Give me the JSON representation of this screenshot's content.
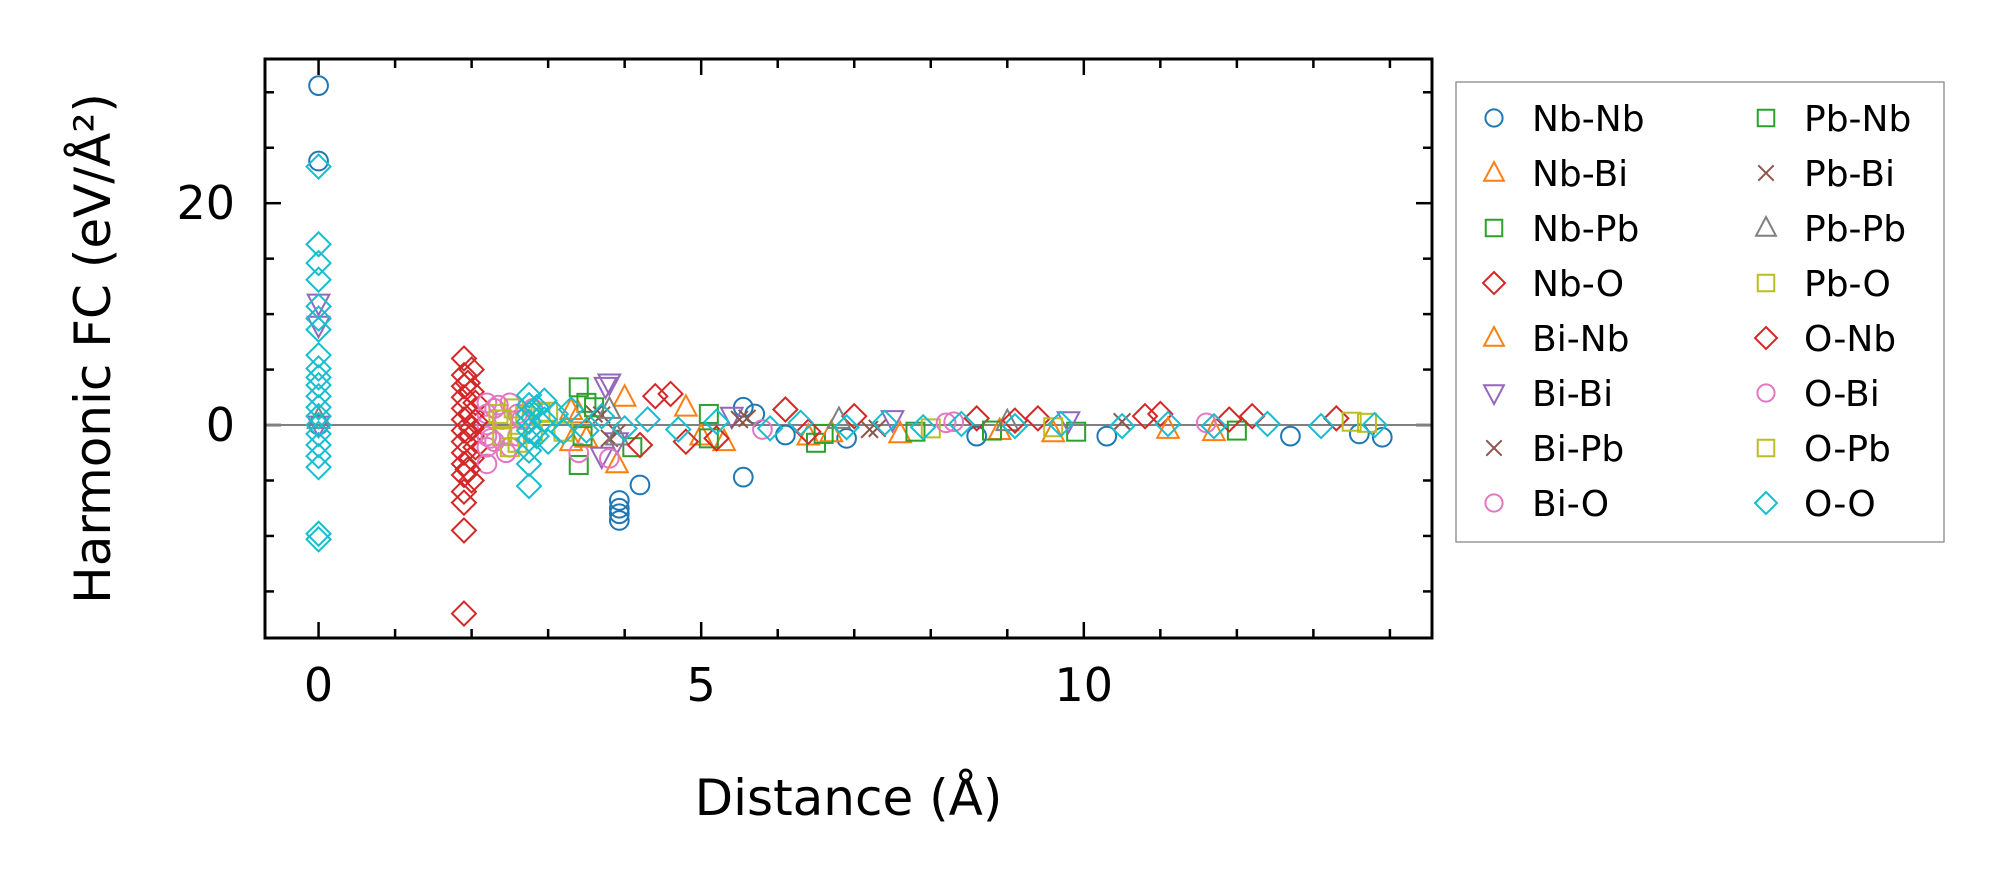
{
  "chart_data": {
    "type": "scatter",
    "xlabel": "Distance (Å)",
    "ylabel": "Harmonic FC (eV/Å²)",
    "xlim": [
      -0.7,
      14.55
    ],
    "ylim": [
      -19.2,
      33
    ],
    "xticks": [
      0,
      5,
      10
    ],
    "yticks": [
      0,
      20
    ],
    "xminor_step": 1,
    "yminor_step": 5,
    "zero_line": true,
    "legend_position": "outside-right",
    "legend_columns": 2,
    "series": [
      {
        "name": "Nb-Nb",
        "marker": "circle",
        "color": "#1f77b4",
        "points": [
          [
            0,
            30.6
          ],
          [
            0,
            23.8
          ],
          [
            0,
            0
          ],
          [
            3.93,
            -6.8
          ],
          [
            3.93,
            -7.5
          ],
          [
            3.93,
            -8
          ],
          [
            3.93,
            -8.6
          ],
          [
            4.2,
            -5.4
          ],
          [
            5.55,
            1.6
          ],
          [
            5.55,
            -4.7
          ],
          [
            5.7,
            1
          ],
          [
            6.1,
            -0.9
          ],
          [
            6.9,
            -1.2
          ],
          [
            8.6,
            -1
          ],
          [
            10.3,
            -1
          ],
          [
            12.7,
            -1
          ],
          [
            13.6,
            -0.8
          ],
          [
            13.9,
            -1.1
          ]
        ]
      },
      {
        "name": "Nb-Bi",
        "marker": "triangle-up",
        "color": "#ff7f0e",
        "points": [
          [
            3.3,
            -1.5
          ],
          [
            3.4,
            1
          ],
          [
            3.9,
            -3.5
          ],
          [
            4,
            2.5
          ],
          [
            5,
            -1
          ],
          [
            5.3,
            -1.5
          ],
          [
            6.4,
            -1
          ],
          [
            7.6,
            -0.8
          ],
          [
            9.6,
            -0.7
          ],
          [
            11.7,
            -0.6
          ]
        ]
      },
      {
        "name": "Nb-Pb",
        "marker": "square",
        "color": "#2ca02c",
        "points": [
          [
            3.4,
            3.4
          ],
          [
            3.4,
            -3.6
          ],
          [
            3.5,
            2
          ],
          [
            4.1,
            -2
          ],
          [
            5.1,
            -1.2
          ],
          [
            6.5,
            -1.6
          ],
          [
            7.8,
            -0.6
          ],
          [
            9.9,
            -0.6
          ],
          [
            12,
            -0.5
          ]
        ]
      },
      {
        "name": "Nb-O",
        "marker": "diamond",
        "color": "#d62728",
        "points": [
          [
            1.9,
            6
          ],
          [
            1.9,
            4.5
          ],
          [
            1.9,
            3.5
          ],
          [
            1.9,
            2.5
          ],
          [
            1.9,
            1.5
          ],
          [
            1.9,
            0.5
          ],
          [
            1.9,
            -0.5
          ],
          [
            1.9,
            -1.5
          ],
          [
            1.9,
            -2.5
          ],
          [
            1.9,
            -3.5
          ],
          [
            1.9,
            -4.5
          ],
          [
            1.9,
            -6
          ],
          [
            1.9,
            -7
          ],
          [
            1.9,
            -9.5
          ],
          [
            1.9,
            -17
          ],
          [
            2,
            5
          ],
          [
            2,
            3
          ],
          [
            2,
            1
          ],
          [
            2,
            -1
          ],
          [
            2,
            -3
          ],
          [
            2,
            -5
          ],
          [
            2.05,
            2
          ],
          [
            2.05,
            -2
          ],
          [
            4.4,
            2.6
          ],
          [
            4.6,
            2.8
          ],
          [
            4.8,
            -1.5
          ],
          [
            5.2,
            -1.2
          ],
          [
            6.1,
            1.4
          ],
          [
            7,
            0.8
          ],
          [
            8.6,
            0.6
          ],
          [
            9.4,
            0.6
          ],
          [
            10.8,
            0.8
          ],
          [
            11,
            1
          ],
          [
            12.2,
            0.8
          ],
          [
            13.3,
            0.6
          ]
        ]
      },
      {
        "name": "Bi-Nb",
        "marker": "triangle-up",
        "color": "#ff7f0e",
        "points": [
          [
            3.3,
            1.3
          ],
          [
            3.5,
            -1.2
          ],
          [
            4.8,
            1.6
          ],
          [
            6.7,
            -0.7
          ],
          [
            8.9,
            -0.5
          ],
          [
            11.1,
            -0.4
          ]
        ]
      },
      {
        "name": "Bi-Bi",
        "marker": "triangle-down",
        "color": "#9467bd",
        "points": [
          [
            0,
            11
          ],
          [
            0,
            9
          ],
          [
            0,
            0
          ],
          [
            3.75,
            3.5
          ],
          [
            3.8,
            3.8
          ],
          [
            3.7,
            -2.8
          ],
          [
            3.9,
            -1.5
          ],
          [
            5.4,
            0.8
          ],
          [
            7.5,
            0.5
          ],
          [
            9.8,
            0.4
          ]
        ]
      },
      {
        "name": "Bi-Pb",
        "marker": "x",
        "color": "#8c564b",
        "points": [
          [
            3.6,
            1
          ],
          [
            3.8,
            -1.2
          ],
          [
            5.6,
            0.6
          ],
          [
            7.2,
            -0.4
          ],
          [
            10.5,
            0.3
          ]
        ]
      },
      {
        "name": "Bi-O",
        "marker": "circle",
        "color": "#e377c2",
        "points": [
          [
            2.2,
            2
          ],
          [
            2.2,
            1
          ],
          [
            2.2,
            0
          ],
          [
            2.2,
            -1
          ],
          [
            2.2,
            -2
          ],
          [
            2.2,
            -3.5
          ],
          [
            2.3,
            1.5
          ],
          [
            2.3,
            -1.5
          ],
          [
            2.4,
            0.5
          ],
          [
            2.5,
            2
          ],
          [
            2.5,
            -2
          ],
          [
            2.6,
            1
          ],
          [
            2.6,
            -1
          ],
          [
            2.8,
            1.5
          ],
          [
            3.4,
            -2.5
          ],
          [
            3.8,
            -3
          ],
          [
            8.3,
            0.3
          ],
          [
            11.6,
            0.2
          ]
        ]
      },
      {
        "name": "Pb-Nb",
        "marker": "square",
        "color": "#2ca02c",
        "points": [
          [
            3.45,
            -1
          ],
          [
            3.6,
            1.6
          ],
          [
            5.1,
            1
          ],
          [
            6.6,
            -0.8
          ],
          [
            8.8,
            -0.5
          ]
        ]
      },
      {
        "name": "Pb-Bi",
        "marker": "x",
        "color": "#8c564b",
        "points": [
          [
            3.7,
            0.9
          ],
          [
            3.9,
            -0.7
          ],
          [
            5.5,
            0.5
          ],
          [
            7.3,
            -0.3
          ]
        ]
      },
      {
        "name": "Pb-Pb",
        "marker": "triangle-up",
        "color": "#7f7f7f",
        "points": [
          [
            0,
            0.5
          ],
          [
            3.8,
            1.4
          ],
          [
            3.9,
            -1
          ],
          [
            6.8,
            0.5
          ],
          [
            9,
            0.3
          ]
        ]
      },
      {
        "name": "Pb-O",
        "marker": "square",
        "color": "#bcbd22",
        "points": [
          [
            2.35,
            1
          ],
          [
            2.4,
            -1
          ],
          [
            2.5,
            -2
          ],
          [
            2.55,
            1.5
          ],
          [
            2.7,
            0.8
          ],
          [
            2.8,
            -0.8
          ],
          [
            3,
            1.2
          ],
          [
            3.2,
            -0.6
          ],
          [
            8,
            -0.3
          ],
          [
            13.5,
            0.3
          ]
        ]
      },
      {
        "name": "O-Nb",
        "marker": "diamond",
        "color": "#d62728",
        "points": [
          [
            1.95,
            -4
          ],
          [
            1.95,
            3.8
          ],
          [
            2,
            -0.3
          ],
          [
            2.05,
            0.3
          ],
          [
            4.2,
            -1.8
          ],
          [
            6.4,
            -0.6
          ],
          [
            9.1,
            0.4
          ],
          [
            11.9,
            0.5
          ]
        ]
      },
      {
        "name": "O-Bi",
        "marker": "circle",
        "color": "#e377c2",
        "points": [
          [
            2.25,
            -1.2
          ],
          [
            2.35,
            1.8
          ],
          [
            2.45,
            -2.5
          ],
          [
            2.65,
            0.5
          ],
          [
            5.8,
            -0.4
          ],
          [
            8.2,
            0.2
          ]
        ]
      },
      {
        "name": "O-Pb",
        "marker": "square",
        "color": "#bcbd22",
        "points": [
          [
            2.4,
            0.5
          ],
          [
            2.6,
            -1.6
          ],
          [
            2.9,
            1.1
          ],
          [
            9.6,
            -0.2
          ],
          [
            13.7,
            0.2
          ]
        ]
      },
      {
        "name": "O-O",
        "marker": "diamond",
        "color": "#17becf",
        "points": [
          [
            0,
            23.3
          ],
          [
            0,
            16.3
          ],
          [
            0,
            14.6
          ],
          [
            0,
            13.1
          ],
          [
            0,
            10.7
          ],
          [
            0,
            9.6
          ],
          [
            0,
            8.6
          ],
          [
            0,
            6.3
          ],
          [
            0,
            5.1
          ],
          [
            0,
            4.3
          ],
          [
            0,
            3.6
          ],
          [
            0,
            2.6
          ],
          [
            0,
            1.6
          ],
          [
            0,
            0.8
          ],
          [
            0,
            0
          ],
          [
            0,
            -0.8
          ],
          [
            0,
            -1.8
          ],
          [
            0,
            -2.8
          ],
          [
            0,
            -3.8
          ],
          [
            0,
            -9.8
          ],
          [
            0,
            -10.3
          ],
          [
            2.75,
            2.7
          ],
          [
            2.75,
            1.8
          ],
          [
            2.75,
            1
          ],
          [
            2.75,
            0.3
          ],
          [
            2.75,
            -0.5
          ],
          [
            2.75,
            -1.3
          ],
          [
            2.75,
            -2.3
          ],
          [
            2.75,
            -3.5
          ],
          [
            2.75,
            -5.5
          ],
          [
            2.85,
            1.6
          ],
          [
            2.85,
            -1
          ],
          [
            2.95,
            2.2
          ],
          [
            2.95,
            0.5
          ],
          [
            3,
            -1.5
          ],
          [
            3.1,
            1
          ],
          [
            3.2,
            -0.6
          ],
          [
            3.3,
            1.4
          ],
          [
            3.5,
            -0.5
          ],
          [
            3.7,
            0.8
          ],
          [
            4,
            -0.3
          ],
          [
            4.3,
            0.5
          ],
          [
            4.7,
            -0.4
          ],
          [
            5.2,
            0.3
          ],
          [
            5.9,
            -0.3
          ],
          [
            6.3,
            0.2
          ],
          [
            6.9,
            -0.2
          ],
          [
            7.4,
            0.2
          ],
          [
            7.9,
            -0.2
          ],
          [
            8.4,
            0.1
          ],
          [
            9.1,
            -0.1
          ],
          [
            9.7,
            0.1
          ],
          [
            10.5,
            -0.1
          ],
          [
            11.1,
            0.1
          ],
          [
            11.7,
            -0.1
          ],
          [
            12.4,
            0.1
          ],
          [
            13.1,
            -0.1
          ],
          [
            13.8,
            0
          ]
        ]
      }
    ]
  }
}
